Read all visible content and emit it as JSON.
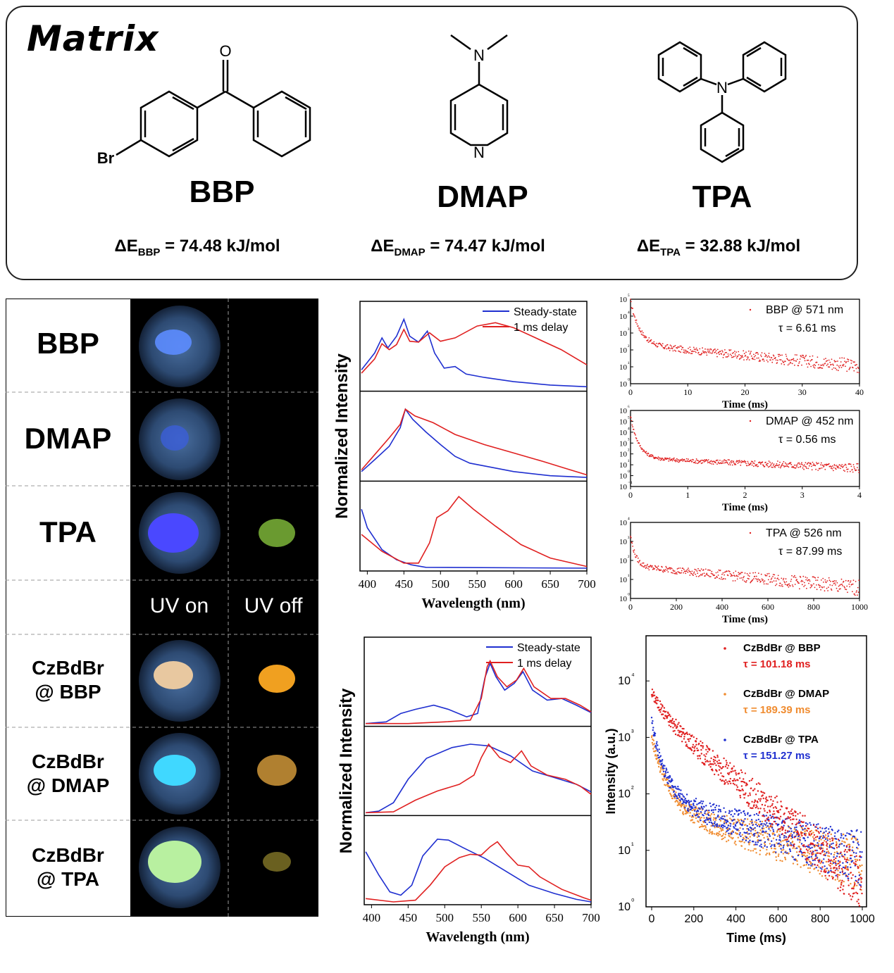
{
  "matrix": {
    "title": "Matrix",
    "molecules": [
      {
        "name": "BBP",
        "energy_prefix": "ΔE",
        "energy_sub": "BBP",
        "energy_value": " = 74.48 kJ/mol",
        "atoms": [
          "O",
          "Br"
        ]
      },
      {
        "name": "DMAP",
        "energy_prefix": "ΔE",
        "energy_sub": "DMAP",
        "energy_value": " = 74.47 kJ/mol",
        "atoms": [
          "N",
          "N"
        ]
      },
      {
        "name": "TPA",
        "energy_prefix": "ΔE",
        "energy_sub": "TPA",
        "energy_value": " = 32.88 kJ/mol",
        "atoms": [
          "N"
        ]
      }
    ]
  },
  "photos": {
    "rows": [
      "BBP",
      "DMAP",
      "TPA",
      "",
      "CzBdBr\n@ BBP",
      "CzBdBr\n@ DMAP",
      "CzBdBr\n@ TPA"
    ],
    "uv_on": "UV on",
    "uv_off": "UV off"
  },
  "chart_data": [
    {
      "type": "line",
      "panel": "matrix-spectra",
      "xlabel": "Wavelength (nm)",
      "ylabel": "Normalized Intensity",
      "xlim": [
        390,
        700
      ],
      "x_ticks": [
        "400",
        "450",
        "500",
        "550",
        "600",
        "650",
        "700"
      ],
      "legend": [
        "Steady-state",
        "1 ms delay"
      ],
      "colors": {
        "steady": "#1f2fd0",
        "delay": "#e02020"
      },
      "subpanels": [
        {
          "name": "BBP",
          "steady": [
            [
              392,
              0.22
            ],
            [
              410,
              0.42
            ],
            [
              420,
              0.6
            ],
            [
              428,
              0.48
            ],
            [
              440,
              0.62
            ],
            [
              450,
              0.82
            ],
            [
              458,
              0.62
            ],
            [
              470,
              0.55
            ],
            [
              482,
              0.68
            ],
            [
              492,
              0.42
            ],
            [
              505,
              0.24
            ],
            [
              520,
              0.26
            ],
            [
              535,
              0.17
            ],
            [
              560,
              0.13
            ],
            [
              600,
              0.08
            ],
            [
              650,
              0.04
            ],
            [
              700,
              0.02
            ]
          ],
          "delay": [
            [
              392,
              0.18
            ],
            [
              410,
              0.35
            ],
            [
              420,
              0.53
            ],
            [
              430,
              0.46
            ],
            [
              440,
              0.52
            ],
            [
              450,
              0.7
            ],
            [
              458,
              0.56
            ],
            [
              470,
              0.55
            ],
            [
              485,
              0.66
            ],
            [
              500,
              0.56
            ],
            [
              520,
              0.6
            ],
            [
              550,
              0.74
            ],
            [
              575,
              0.78
            ],
            [
              600,
              0.72
            ],
            [
              630,
              0.6
            ],
            [
              665,
              0.46
            ],
            [
              700,
              0.28
            ]
          ]
        },
        {
          "name": "DMAP",
          "steady": [
            [
              392,
              0.08
            ],
            [
              410,
              0.22
            ],
            [
              430,
              0.38
            ],
            [
              445,
              0.6
            ],
            [
              452,
              0.82
            ],
            [
              462,
              0.7
            ],
            [
              480,
              0.55
            ],
            [
              500,
              0.4
            ],
            [
              520,
              0.26
            ],
            [
              540,
              0.18
            ],
            [
              570,
              0.13
            ],
            [
              600,
              0.08
            ],
            [
              650,
              0.03
            ],
            [
              700,
              0.01
            ]
          ],
          "delay": [
            [
              392,
              0.1
            ],
            [
              410,
              0.28
            ],
            [
              430,
              0.48
            ],
            [
              445,
              0.64
            ],
            [
              452,
              0.82
            ],
            [
              465,
              0.74
            ],
            [
              490,
              0.66
            ],
            [
              520,
              0.52
            ],
            [
              560,
              0.4
            ],
            [
              600,
              0.3
            ],
            [
              640,
              0.2
            ],
            [
              670,
              0.12
            ],
            [
              700,
              0.04
            ]
          ]
        },
        {
          "name": "TPA",
          "steady": [
            [
              392,
              0.7
            ],
            [
              400,
              0.48
            ],
            [
              420,
              0.22
            ],
            [
              440,
              0.1
            ],
            [
              460,
              0.04
            ],
            [
              480,
              0.01
            ],
            [
              700,
              0.0
            ]
          ],
          "delay": [
            [
              392,
              0.4
            ],
            [
              420,
              0.2
            ],
            [
              450,
              0.06
            ],
            [
              470,
              0.06
            ],
            [
              485,
              0.3
            ],
            [
              495,
              0.6
            ],
            [
              510,
              0.68
            ],
            [
              525,
              0.85
            ],
            [
              545,
              0.7
            ],
            [
              575,
              0.5
            ],
            [
              610,
              0.28
            ],
            [
              650,
              0.12
            ],
            [
              700,
              0.02
            ]
          ]
        }
      ]
    },
    {
      "type": "scatter",
      "panel": "matrix-decay",
      "subpanels": [
        {
          "name": "BBP",
          "legend": "BBP @ 571 nm",
          "tau": "τ = 6.61 ms",
          "xlabel": "Time (ms)",
          "xlim": [
            0,
            40
          ],
          "x_ticks": [
            "0",
            "10",
            "20",
            "30",
            "40"
          ],
          "y_exp_min": 0,
          "y_exp_max": 5,
          "y_ticks": [
            "10⁵",
            "10⁴",
            "10³",
            "10²",
            "10¹",
            "10⁰"
          ],
          "tau_value": 6.61,
          "y0_exp": 4.9,
          "plateau_exp": 2.3,
          "tail_exp": 1.05
        },
        {
          "name": "DMAP",
          "legend": "DMAP @ 452 nm",
          "tau": "τ = 0.56 ms",
          "xlabel": "Time (ms)",
          "xlim": [
            0,
            4
          ],
          "x_ticks": [
            "0",
            "1",
            "2",
            "3",
            "4"
          ],
          "y_exp_min": -1,
          "y_exp_max": 6,
          "y_ticks": [
            "10⁶",
            "10⁵",
            "10⁴",
            "10³",
            "10²",
            "10¹",
            "10⁰",
            "10⁻¹"
          ],
          "tau_value": 0.56,
          "y0_exp": 5.5,
          "plateau_exp": 1.6,
          "tail_exp": 0.7
        },
        {
          "name": "TPA",
          "legend": "TPA @ 526 nm",
          "tau": "τ = 87.99 ms",
          "xlabel": "Time (ms)",
          "xlim": [
            0,
            1000
          ],
          "x_ticks": [
            "0",
            "200",
            "400",
            "600",
            "800",
            "1000"
          ],
          "y_exp_min": 0,
          "y_exp_max": 4,
          "y_ticks": [
            "10⁴",
            "10³",
            "10²",
            "10¹",
            "10⁰"
          ],
          "tau_value": 87.99,
          "y0_exp": 3.3,
          "plateau_exp": 1.7,
          "tail_exp": 0.55
        }
      ]
    },
    {
      "type": "line",
      "panel": "doped-spectra",
      "xlabel": "Wavelength (nm)",
      "ylabel": "Normalized Intensity",
      "xlim": [
        390,
        700
      ],
      "x_ticks": [
        "400",
        "450",
        "500",
        "550",
        "600",
        "650",
        "700"
      ],
      "legend": [
        "Steady-state",
        "1 ms delay"
      ],
      "colors": {
        "steady": "#1f2fd0",
        "delay": "#e02020"
      },
      "subpanels": [
        {
          "name": "CzBdBr @ BBP",
          "steady": [
            [
              392,
              0.0
            ],
            [
              420,
              0.02
            ],
            [
              440,
              0.12
            ],
            [
              460,
              0.17
            ],
            [
              485,
              0.22
            ],
            [
              505,
              0.17
            ],
            [
              530,
              0.08
            ],
            [
              545,
              0.12
            ],
            [
              555,
              0.55
            ],
            [
              562,
              0.72
            ],
            [
              570,
              0.56
            ],
            [
              582,
              0.4
            ],
            [
              595,
              0.48
            ],
            [
              607,
              0.62
            ],
            [
              620,
              0.4
            ],
            [
              640,
              0.28
            ],
            [
              660,
              0.3
            ],
            [
              680,
              0.22
            ],
            [
              700,
              0.13
            ]
          ],
          "delay": [
            [
              392,
              0.0
            ],
            [
              450,
              0.0
            ],
            [
              500,
              0.02
            ],
            [
              535,
              0.04
            ],
            [
              550,
              0.3
            ],
            [
              558,
              0.68
            ],
            [
              562,
              0.75
            ],
            [
              572,
              0.56
            ],
            [
              585,
              0.44
            ],
            [
              598,
              0.52
            ],
            [
              608,
              0.66
            ],
            [
              622,
              0.44
            ],
            [
              645,
              0.3
            ],
            [
              665,
              0.3
            ],
            [
              685,
              0.22
            ],
            [
              700,
              0.14
            ]
          ]
        },
        {
          "name": "CzBdBr @ DMAP",
          "steady": [
            [
              392,
              0.0
            ],
            [
              410,
              0.02
            ],
            [
              430,
              0.12
            ],
            [
              450,
              0.4
            ],
            [
              475,
              0.65
            ],
            [
              510,
              0.78
            ],
            [
              535,
              0.82
            ],
            [
              560,
              0.8
            ],
            [
              590,
              0.68
            ],
            [
              620,
              0.5
            ],
            [
              650,
              0.42
            ],
            [
              680,
              0.34
            ],
            [
              700,
              0.25
            ]
          ],
          "delay": [
            [
              392,
              0.0
            ],
            [
              430,
              0.01
            ],
            [
              460,
              0.15
            ],
            [
              490,
              0.26
            ],
            [
              520,
              0.34
            ],
            [
              540,
              0.45
            ],
            [
              550,
              0.66
            ],
            [
              560,
              0.82
            ],
            [
              575,
              0.66
            ],
            [
              590,
              0.6
            ],
            [
              605,
              0.74
            ],
            [
              618,
              0.56
            ],
            [
              640,
              0.45
            ],
            [
              665,
              0.4
            ],
            [
              685,
              0.32
            ],
            [
              700,
              0.22
            ]
          ]
        },
        {
          "name": "CzBdBr @ TPA",
          "steady": [
            [
              392,
              0.6
            ],
            [
              410,
              0.32
            ],
            [
              425,
              0.12
            ],
            [
              440,
              0.08
            ],
            [
              455,
              0.2
            ],
            [
              470,
              0.55
            ],
            [
              490,
              0.75
            ],
            [
              505,
              0.74
            ],
            [
              525,
              0.65
            ],
            [
              555,
              0.52
            ],
            [
              585,
              0.36
            ],
            [
              615,
              0.2
            ],
            [
              650,
              0.1
            ],
            [
              680,
              0.03
            ],
            [
              700,
              0.0
            ]
          ],
          "delay": [
            [
              392,
              0.04
            ],
            [
              430,
              0.0
            ],
            [
              460,
              0.02
            ],
            [
              480,
              0.2
            ],
            [
              500,
              0.42
            ],
            [
              520,
              0.53
            ],
            [
              535,
              0.57
            ],
            [
              550,
              0.56
            ],
            [
              562,
              0.66
            ],
            [
              572,
              0.72
            ],
            [
              585,
              0.58
            ],
            [
              600,
              0.44
            ],
            [
              615,
              0.42
            ],
            [
              630,
              0.3
            ],
            [
              660,
              0.15
            ],
            [
              690,
              0.05
            ],
            [
              700,
              0.02
            ]
          ]
        }
      ]
    },
    {
      "type": "scatter",
      "panel": "doped-decay",
      "xlabel": "Time (ms)",
      "ylabel": "Intensity (a.u.)",
      "xlim": [
        0,
        1000
      ],
      "x_ticks": [
        "0",
        "200",
        "400",
        "600",
        "800",
        "1000"
      ],
      "y_ticks": [
        "10⁴",
        "10³",
        "10²",
        "10¹",
        "10⁰"
      ],
      "y_exp_min": 0,
      "y_exp_max": 4.8,
      "series": [
        {
          "name": "CzBdBr @ BBP",
          "tau": "τ = 101.18 ms",
          "color": "#e02020",
          "tau_value": 101.18,
          "y0_exp": 3.8,
          "plateau_exp": 2.6,
          "tail_exp": 0.9
        },
        {
          "name": "CzBdBr @ DMAP",
          "tau": "τ = 189.39 ms",
          "color": "#f08c30",
          "tau_value": 189.39,
          "y0_exp": 3.0,
          "plateau_exp": 1.7,
          "tail_exp": 0.7
        },
        {
          "name": "CzBdBr @ TPA",
          "tau": "τ = 151.27 ms",
          "color": "#2030d0",
          "tau_value": 151.27,
          "y0_exp": 3.3,
          "plateau_exp": 1.9,
          "tail_exp": 0.75
        }
      ]
    }
  ]
}
